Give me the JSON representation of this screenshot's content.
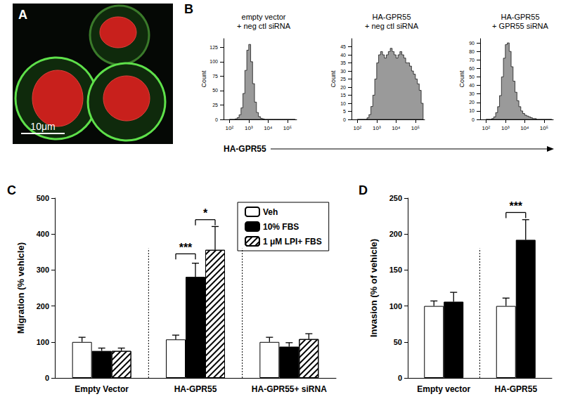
{
  "chart_data": [
    {
      "type": "image",
      "panel": "A",
      "annotations": [
        "10μm"
      ]
    },
    {
      "type": "histogram_group",
      "panel": "B",
      "xlabel": "HA-GPR55",
      "charts": [
        {
          "type": "histogram",
          "title": "empty vector\n+ neg ctl siRNA",
          "ylabel": "Count",
          "log": "x",
          "color": "#9a9a9a",
          "grid": false,
          "bins": [
            100,
            126,
            158,
            200,
            251,
            316,
            398,
            501,
            631,
            794,
            1000,
            1259,
            1585,
            1995,
            2512,
            3162,
            3981,
            5012,
            6310,
            7943,
            10000,
            12589,
            15849,
            19953,
            25119,
            31623,
            39811,
            50119,
            63096,
            79433,
            100000,
            125893,
            158489,
            199526,
            251189
          ],
          "counts": [
            0,
            0,
            0,
            1,
            3,
            8,
            20,
            45,
            85,
            120,
            130,
            100,
            62,
            30,
            12,
            5,
            2,
            1,
            0,
            0,
            0,
            0,
            0,
            0,
            0,
            0,
            0,
            0,
            0,
            0,
            0,
            0,
            0,
            0
          ],
          "xlim": [
            50,
            300000
          ],
          "xticks": [
            {
              "value": 100,
              "label": "10²"
            },
            {
              "value": 1000,
              "label": "10³"
            },
            {
              "value": 10000,
              "label": "10⁴"
            },
            {
              "value": 100000,
              "label": "10⁵"
            }
          ],
          "ylim": [
            0,
            140
          ],
          "yticks": [
            0,
            25,
            50,
            75,
            100,
            125
          ]
        },
        {
          "type": "histogram",
          "title": "HA-GPR55\n+ neg ctl siRNA",
          "ylabel": "Count",
          "log": "x",
          "color": "#9a9a9a",
          "grid": false,
          "bins": [
            100,
            126,
            158,
            200,
            251,
            316,
            398,
            501,
            631,
            794,
            1000,
            1259,
            1585,
            1995,
            2512,
            3162,
            3981,
            5012,
            6310,
            7943,
            10000,
            12589,
            15849,
            19953,
            25119,
            31623,
            39811,
            50119,
            63096,
            79433,
            100000,
            125893,
            158489,
            199526,
            251189
          ],
          "counts": [
            0,
            0,
            0,
            0,
            0,
            1,
            3,
            8,
            15,
            25,
            35,
            40,
            42,
            40,
            38,
            40,
            42,
            44,
            42,
            40,
            38,
            40,
            42,
            40,
            38,
            35,
            35,
            33,
            30,
            28,
            25,
            22,
            18,
            10
          ],
          "xlim": [
            50,
            300000
          ],
          "xticks": [
            {
              "value": 100,
              "label": "10²"
            },
            {
              "value": 1000,
              "label": "10³"
            },
            {
              "value": 10000,
              "label": "10⁴"
            },
            {
              "value": 100000,
              "label": "10⁵"
            }
          ],
          "ylim": [
            0,
            50
          ],
          "yticks": [
            0,
            5,
            10,
            15,
            20,
            25,
            30,
            35,
            40,
            45
          ]
        },
        {
          "type": "histogram",
          "title": "HA-GPR55\n+ GPR55 siRNA",
          "ylabel": "Count",
          "log": "x",
          "color": "#9a9a9a",
          "grid": false,
          "bins": [
            100,
            126,
            158,
            200,
            251,
            316,
            398,
            501,
            631,
            794,
            1000,
            1259,
            1585,
            1995,
            2512,
            3162,
            3981,
            5012,
            6310,
            7943,
            10000,
            12589,
            15849,
            19953,
            25119,
            31623,
            39811,
            50119,
            63096,
            79433,
            100000,
            125893,
            158489,
            199526,
            251189
          ],
          "counts": [
            0,
            0,
            0,
            1,
            3,
            8,
            15,
            28,
            50,
            72,
            88,
            90,
            80,
            62,
            45,
            32,
            22,
            15,
            10,
            7,
            5,
            4,
            3,
            2,
            1,
            1,
            0,
            0,
            0,
            0,
            0,
            0,
            0,
            0
          ],
          "xlim": [
            50,
            300000
          ],
          "xticks": [
            {
              "value": 100,
              "label": "10²"
            },
            {
              "value": 1000,
              "label": "10³"
            },
            {
              "value": 10000,
              "label": "10⁴"
            },
            {
              "value": 100000,
              "label": "10⁵"
            }
          ],
          "ylim": [
            0,
            95
          ],
          "yticks": [
            0,
            10,
            20,
            30,
            40,
            50,
            60,
            70,
            80,
            90
          ]
        }
      ]
    },
    {
      "type": "bar",
      "panel": "C",
      "ylabel": "Migration (% vehicle)",
      "categories": [
        "Empty Vector",
        "HA-GPR55",
        "HA-GPR55+ siRNA"
      ],
      "series": [
        {
          "name": "Veh",
          "color": "#ffffff",
          "values": [
            100,
            107,
            100
          ],
          "errors": [
            13,
            12,
            13
          ]
        },
        {
          "name": "10% FBS",
          "color": "#000000",
          "values": [
            75,
            281,
            87
          ],
          "errors": [
            8,
            38,
            11
          ]
        },
        {
          "name": "1 μM LPI+ FBS",
          "color": "#ffffff",
          "marker": "hatched",
          "values": [
            75,
            356,
            108
          ],
          "errors": [
            8,
            65,
            15
          ]
        }
      ],
      "ylim": [
        0,
        500
      ],
      "yticks": [
        0,
        100,
        200,
        300,
        400,
        500
      ],
      "grid": false,
      "legend": "upper right",
      "annotations": [
        {
          "text": "***",
          "category": "HA-GPR55",
          "from": "Veh",
          "to": "10% FBS",
          "y": 345
        },
        {
          "text": "*",
          "category": "HA-GPR55",
          "from": "10% FBS",
          "to": "1 μM LPI+ FBS",
          "y": 440
        }
      ]
    },
    {
      "type": "bar",
      "panel": "D",
      "ylabel": "Invasion (% of vehicle)",
      "categories": [
        "Empty vector",
        "HA-GPR55"
      ],
      "series": [
        {
          "name": "Veh",
          "color": "#ffffff",
          "values": [
            100,
            100
          ],
          "errors": [
            7,
            11
          ]
        },
        {
          "name": "10% FBS",
          "color": "#000000",
          "values": [
            106,
            192
          ],
          "errors": [
            13,
            28
          ]
        }
      ],
      "ylim": [
        0,
        250
      ],
      "yticks": [
        0,
        50,
        100,
        150,
        200,
        250
      ],
      "grid": false,
      "legend": false,
      "annotations": [
        {
          "text": "***",
          "category": "HA-GPR55",
          "from": "Veh",
          "to": "10% FBS",
          "y": 230
        }
      ]
    }
  ]
}
